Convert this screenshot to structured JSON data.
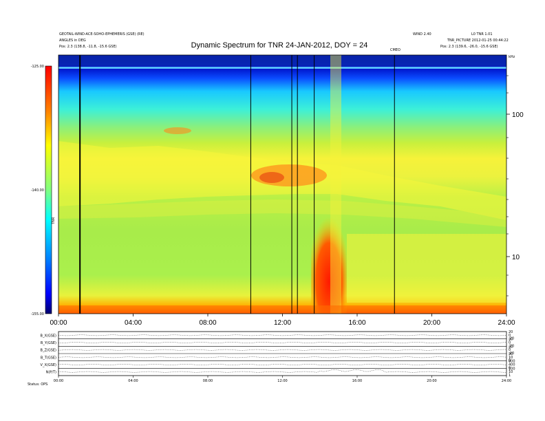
{
  "header": {
    "title": "Dynamic Spectrum for TNR 24-JAN-2012, DOY = 24",
    "left_info": [
      "GEOTAIL-WIND-ACE-SOHO-EPHEMERIS (GSE) (RE)",
      "ANGLES in DEG",
      "Pos:   2.3 (138.8, -11.8, -15.6 GSE)"
    ],
    "right_info": [
      "WIND 2.40",
      "L0 TNR 1.01",
      "TNR_PICTURE 2012-01-25 00:44:22",
      "Pos:   2.3 (139.6, -26.0, -15.6 GSE)"
    ],
    "event_label": "CMEO"
  },
  "colorbar": {
    "max_label": "-125.00",
    "mid_label": "-140.00",
    "min_label": "-155.00",
    "unit_label": "TNR",
    "colors": [
      "#00006e",
      "#0000ff",
      "#0080ff",
      "#00ffff",
      "#80ff80",
      "#ffff00",
      "#ff8000",
      "#ff0000"
    ]
  },
  "chart_data": [
    {
      "type": "heatmap",
      "title": "Dynamic Spectrum for TNR 24-JAN-2012, DOY = 24",
      "x_ticks": [
        "00:00",
        "04:00",
        "08:00",
        "12:00",
        "16:00",
        "20:00",
        "24:00"
      ],
      "x_range_hours": [
        0,
        24
      ],
      "y_scale": "log",
      "y_ticks": [
        "100",
        "10"
      ],
      "y_unit_label": "kHz",
      "colorbar_range": [
        -155,
        -125
      ],
      "vertical_lines_hours": [
        1.15,
        10.3,
        12.5,
        12.8,
        13.7,
        18.0
      ],
      "notable_features": [
        {
          "label": "intense low-frequency burst",
          "hours": [
            13.6,
            15.6
          ]
        },
        {
          "label": "enhanced band",
          "hours": [
            10.3,
            14.0
          ]
        }
      ]
    },
    {
      "type": "line",
      "panels": [
        "B_X(GSE)",
        "B_Y(GSE)",
        "B_Z(GSE)",
        "B_T(GSE)",
        "V_X(GSE)",
        "N(P/T)"
      ],
      "x_ticks": [
        "00:00",
        "04:00",
        "08:00",
        "12:00",
        "16:00",
        "20:00",
        "24:00"
      ],
      "right_labels": [
        "20",
        "0",
        "-20",
        "20",
        "0",
        "-20",
        "20",
        "0",
        "-20",
        "20",
        "10",
        "0",
        "800",
        "400",
        "0",
        "100",
        "10",
        "1"
      ]
    }
  ],
  "footer": {
    "left": "Status:   OPS"
  }
}
